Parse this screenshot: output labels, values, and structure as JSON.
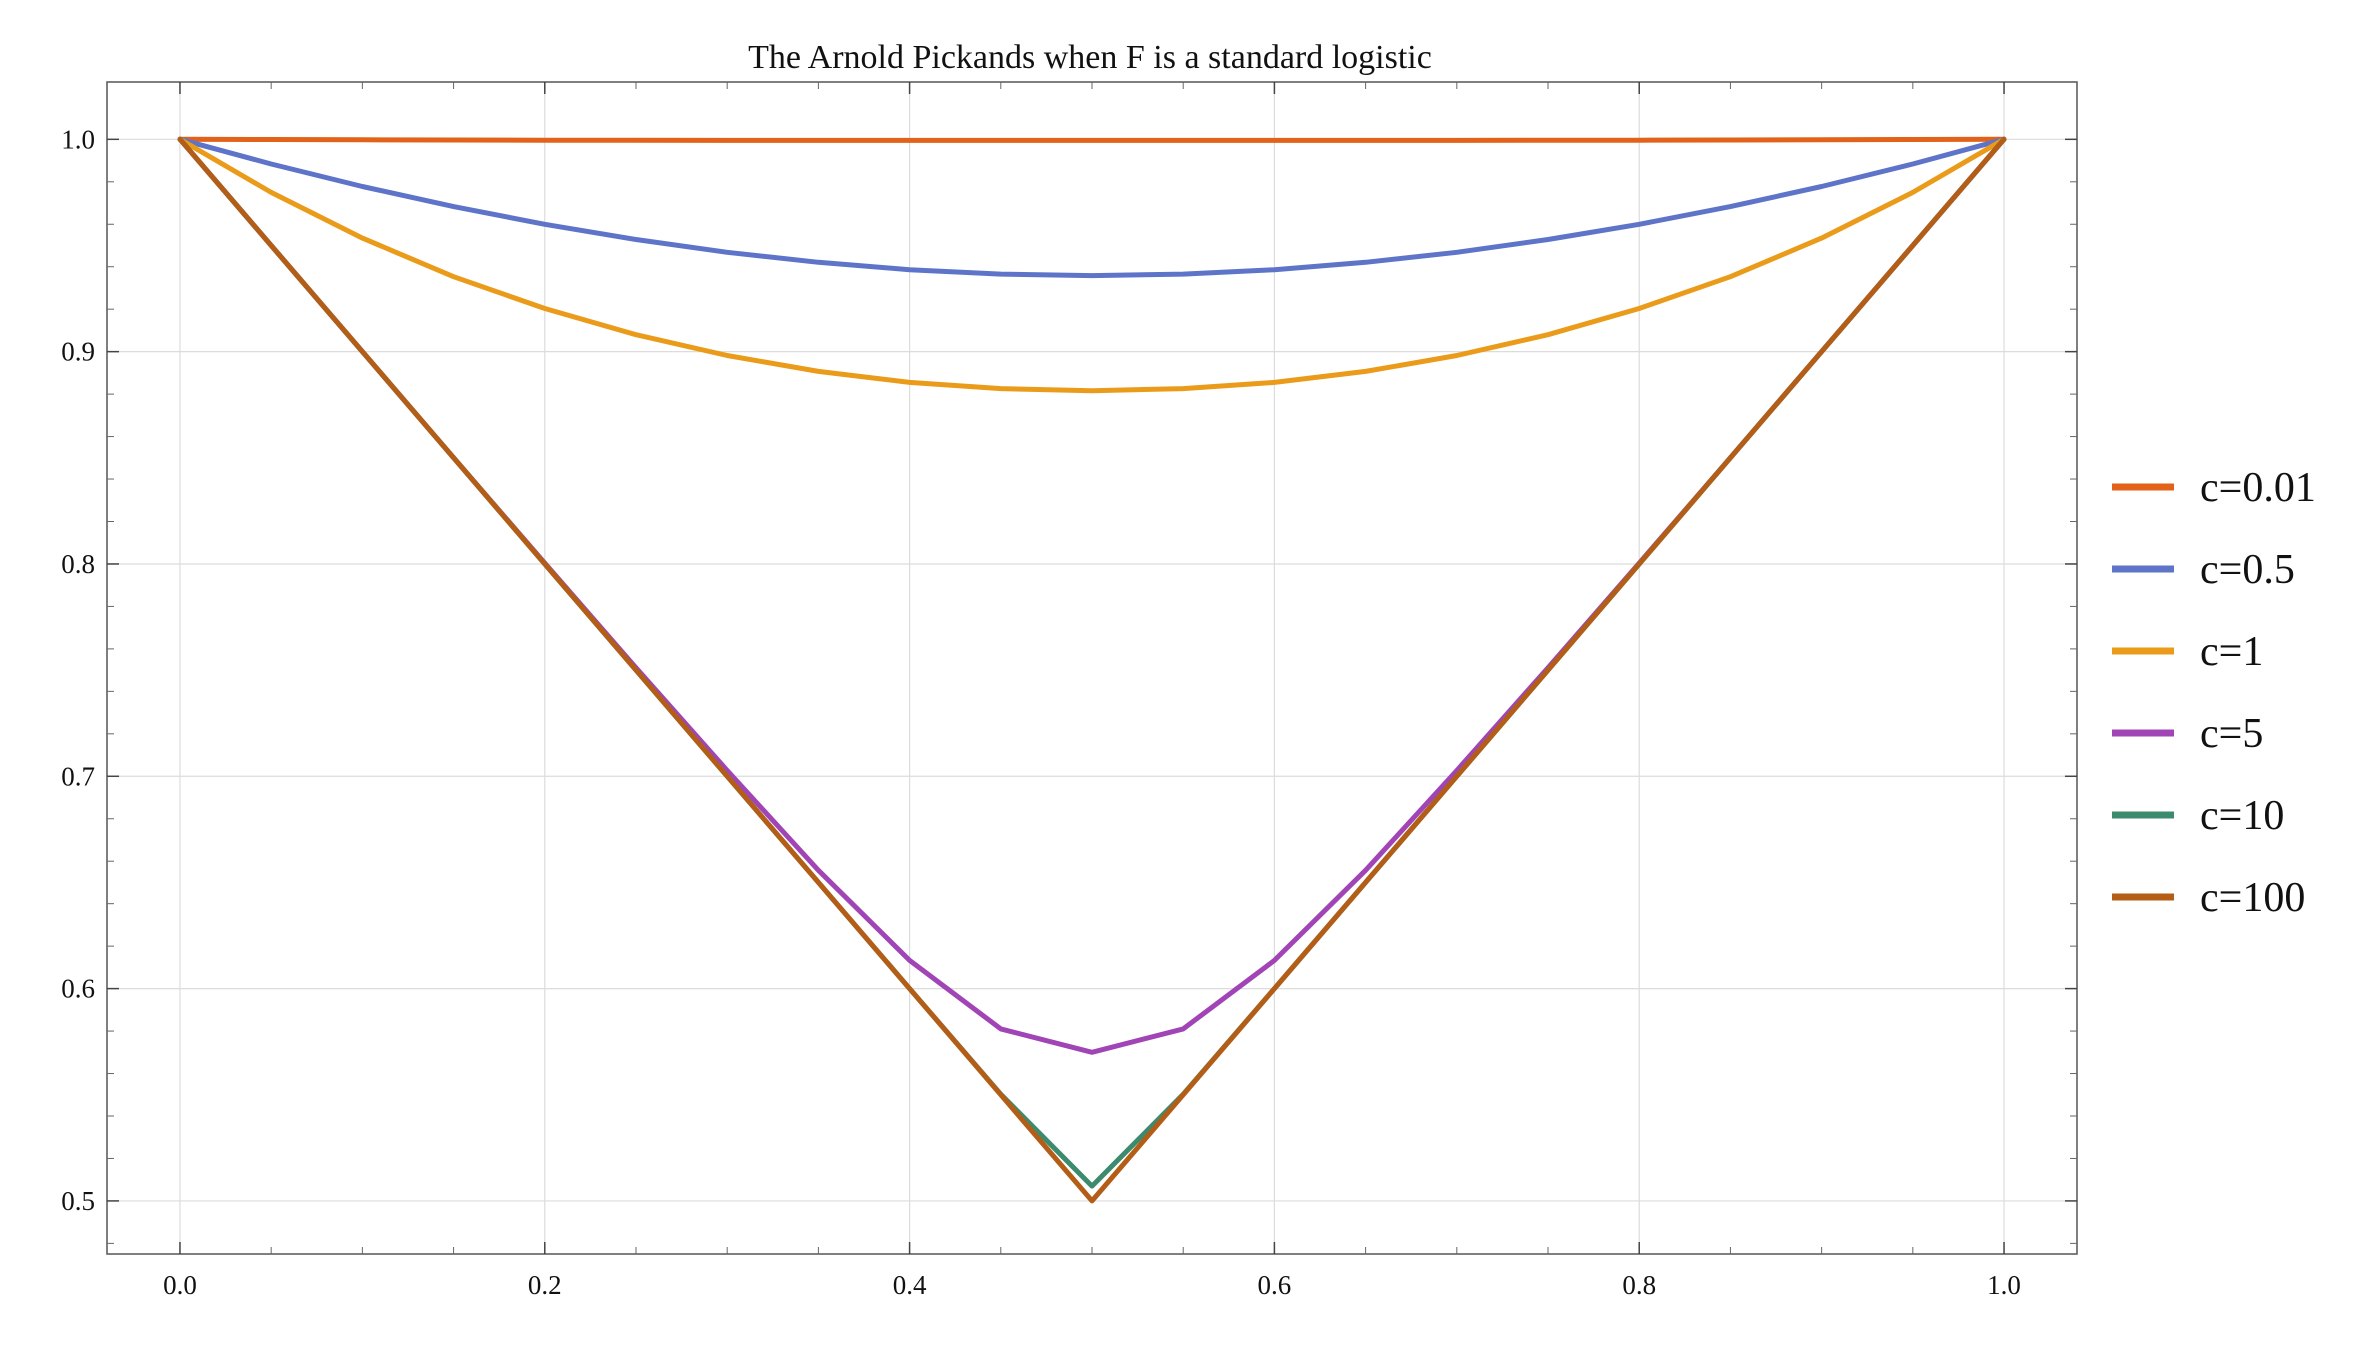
{
  "chart_data": {
    "type": "line",
    "title": "The Arnold Pickands when F is a standard logistic",
    "xlabel": "",
    "ylabel": "",
    "xlim": [
      -0.04,
      1.04
    ],
    "ylim": [
      0.475,
      1.027
    ],
    "x_ticks": [
      0.0,
      0.2,
      0.4,
      0.6,
      0.8,
      1.0
    ],
    "x_tick_labels": [
      "0.0",
      "0.2",
      "0.4",
      "0.6",
      "0.8",
      "1.0"
    ],
    "y_ticks": [
      0.5,
      0.6,
      0.7,
      0.8,
      0.9,
      1.0
    ],
    "y_tick_labels": [
      "0.5",
      "0.6",
      "0.7",
      "0.8",
      "0.9",
      "1.0"
    ],
    "grid": true,
    "legend_position": "right",
    "x": [
      0.0,
      0.05,
      0.1,
      0.15,
      0.2,
      0.25,
      0.3,
      0.35,
      0.4,
      0.45,
      0.5,
      0.55,
      0.6,
      0.65,
      0.7,
      0.75,
      0.8,
      0.85,
      0.9,
      0.95,
      1.0
    ],
    "series": [
      {
        "name": "c=0.01",
        "color": "#e2621a",
        "values": [
          1.0,
          0.9999,
          0.9998,
          0.9997,
          0.9996,
          0.9996,
          0.9995,
          0.9995,
          0.9995,
          0.9995,
          0.9995,
          0.9995,
          0.9995,
          0.9995,
          0.9995,
          0.9996,
          0.9996,
          0.9997,
          0.9998,
          0.9999,
          1.0
        ]
      },
      {
        "name": "c=0.5",
        "color": "#5e74c9",
        "values": [
          1.0,
          0.9884,
          0.9778,
          0.9683,
          0.96,
          0.9528,
          0.9468,
          0.9421,
          0.9386,
          0.9365,
          0.9358,
          0.9365,
          0.9386,
          0.9421,
          0.9468,
          0.9528,
          0.96,
          0.9683,
          0.9778,
          0.9884,
          1.0
        ]
      },
      {
        "name": "c=1",
        "color": "#eb9b1a",
        "values": [
          1.0,
          0.975,
          0.9535,
          0.9353,
          0.9203,
          0.908,
          0.8982,
          0.8907,
          0.8855,
          0.8826,
          0.8816,
          0.8826,
          0.8855,
          0.8907,
          0.8982,
          0.908,
          0.9203,
          0.9353,
          0.9535,
          0.975,
          1.0
        ]
      },
      {
        "name": "c=5",
        "color": "#a145b6",
        "values": [
          1.0,
          0.95,
          0.9,
          0.85,
          0.8004,
          0.7511,
          0.7027,
          0.6557,
          0.6133,
          0.581,
          0.57,
          0.581,
          0.6133,
          0.6557,
          0.7027,
          0.7511,
          0.8004,
          0.85,
          0.9,
          0.95,
          1.0
        ]
      },
      {
        "name": "c=10",
        "color": "#3d8b6e",
        "values": [
          1.0,
          0.95,
          0.9,
          0.85,
          0.8,
          0.75,
          0.7,
          0.65,
          0.6,
          0.5502,
          0.507,
          0.5502,
          0.6,
          0.65,
          0.7,
          0.75,
          0.8,
          0.85,
          0.9,
          0.95,
          1.0
        ]
      },
      {
        "name": "c=100",
        "color": "#b35d17",
        "values": [
          1.0,
          0.95,
          0.9,
          0.85,
          0.8,
          0.75,
          0.7,
          0.65,
          0.6,
          0.55,
          0.5,
          0.55,
          0.6,
          0.65,
          0.7,
          0.75,
          0.8,
          0.85,
          0.9,
          0.95,
          1.0
        ]
      }
    ]
  }
}
